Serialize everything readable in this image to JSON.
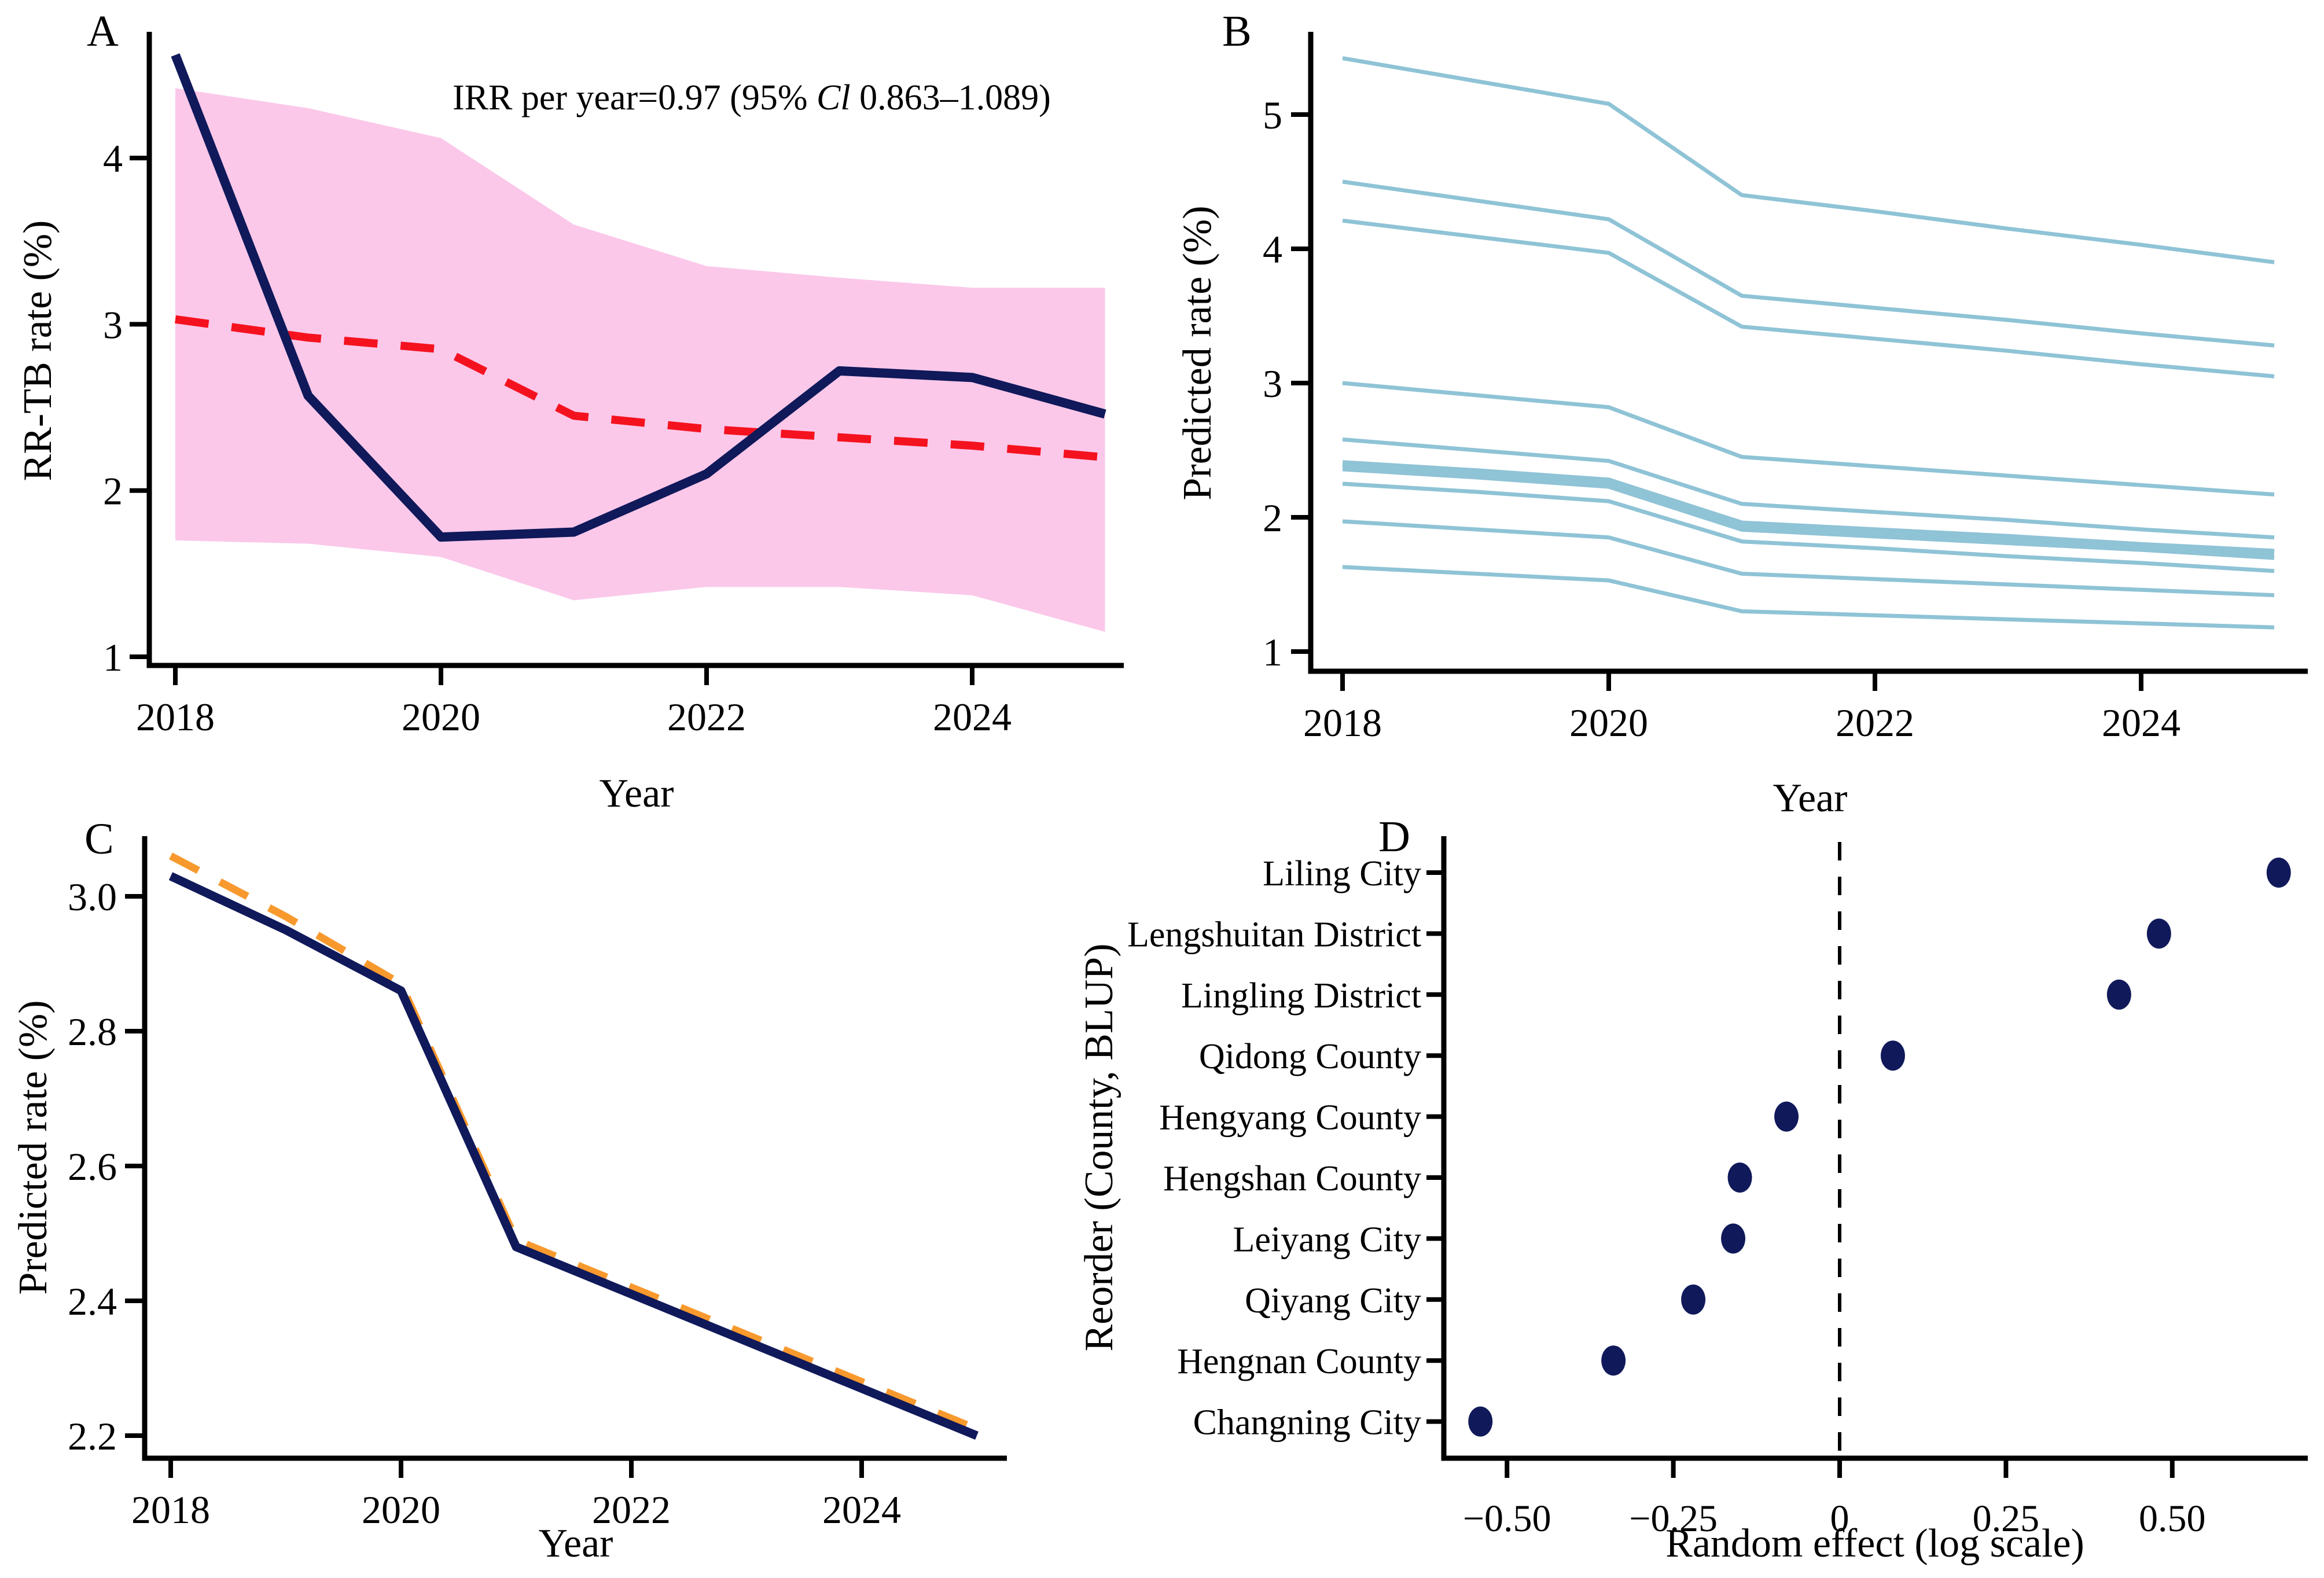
{
  "figure": {
    "background": "#ffffff",
    "text_color": "#000000"
  },
  "chart_data": [
    {
      "id": "A",
      "type": "line",
      "panel_label": "A",
      "xlabel": "Year",
      "ylabel": "RR-TB rate (%)",
      "x": [
        2018,
        2019,
        2020,
        2021,
        2022,
        2023,
        2024,
        2025
      ],
      "xtick_labels": [
        "2018",
        "2020",
        "2022",
        "2024"
      ],
      "xtick_values": [
        2018,
        2020,
        2022,
        2024
      ],
      "ytick_labels": [
        "1",
        "2",
        "3",
        "4"
      ],
      "ytick_values": [
        1,
        2,
        3,
        4
      ],
      "xlim": [
        2017.8,
        2025.2
      ],
      "ylim": [
        0.95,
        4.75
      ],
      "grid": false,
      "legend": "none",
      "annotation": {
        "prefix": "IRR per year=0.97 (95% ",
        "italic": "Cl",
        "suffix": " 0.863–1.089)"
      },
      "band": {
        "name": "95% confidence band",
        "color": "#FBC8EA",
        "upper": [
          4.42,
          4.3,
          4.12,
          3.6,
          3.35,
          3.28,
          3.22,
          3.22
        ],
        "lower": [
          1.7,
          1.68,
          1.6,
          1.34,
          1.42,
          1.42,
          1.37,
          1.15
        ]
      },
      "series": [
        {
          "name": "red-dashed-trend",
          "color": "#F5121F",
          "dash": "58 40",
          "width": 14,
          "values": [
            3.03,
            2.92,
            2.85,
            2.45,
            2.37,
            2.32,
            2.27,
            2.2
          ]
        },
        {
          "name": "navy-solid-observed",
          "color": "#10195A",
          "dash": null,
          "width": 16,
          "values": [
            4.62,
            2.57,
            1.72,
            1.75,
            2.1,
            2.72,
            2.68,
            2.46
          ]
        }
      ]
    },
    {
      "id": "B",
      "type": "line",
      "panel_label": "B",
      "xlabel": "Year",
      "ylabel": "Predicted rate (%)",
      "x": [
        2018,
        2019,
        2020,
        2021,
        2022,
        2023,
        2024,
        2025
      ],
      "xtick_labels": [
        "2018",
        "2020",
        "2022",
        "2024"
      ],
      "xtick_values": [
        2018,
        2020,
        2022,
        2024
      ],
      "ytick_labels": [
        "1",
        "2",
        "3",
        "4",
        "5"
      ],
      "ytick_values": [
        1,
        2,
        3,
        4,
        5
      ],
      "xlim": [
        2017.8,
        2025.3
      ],
      "ylim": [
        0.86,
        5.6
      ],
      "grid": false,
      "legend": "none",
      "series": [
        {
          "name": "county-trajectory-1",
          "color": "#8FC3D6",
          "dash": null,
          "width": 7,
          "values": [
            5.42,
            5.25,
            5.08,
            4.4,
            4.28,
            4.15,
            4.03,
            3.9
          ]
        },
        {
          "name": "county-trajectory-2",
          "color": "#8FC3D6",
          "dash": null,
          "width": 7,
          "values": [
            4.5,
            4.36,
            4.22,
            3.65,
            3.56,
            3.47,
            3.37,
            3.28
          ]
        },
        {
          "name": "county-trajectory-3",
          "color": "#8FC3D6",
          "dash": null,
          "width": 7,
          "values": [
            4.21,
            4.09,
            3.97,
            3.42,
            3.33,
            3.24,
            3.14,
            3.05
          ]
        },
        {
          "name": "county-trajectory-4",
          "color": "#8FC3D6",
          "dash": null,
          "width": 7,
          "values": [
            3.0,
            2.91,
            2.82,
            2.45,
            2.38,
            2.31,
            2.24,
            2.17
          ]
        },
        {
          "name": "county-trajectory-5",
          "color": "#8FC3D6",
          "dash": null,
          "width": 7,
          "values": [
            2.58,
            2.5,
            2.42,
            2.1,
            2.04,
            1.98,
            1.91,
            1.85
          ]
        },
        {
          "name": "county-trajectory-6",
          "color": "#8FC3D6",
          "dash": null,
          "width": 12,
          "values": [
            2.4,
            2.34,
            2.27,
            1.95,
            1.9,
            1.85,
            1.79,
            1.74
          ]
        },
        {
          "name": "county-trajectory-7",
          "color": "#8FC3D6",
          "dash": null,
          "width": 8,
          "values": [
            2.36,
            2.3,
            2.23,
            1.91,
            1.86,
            1.81,
            1.76,
            1.7
          ]
        },
        {
          "name": "county-trajectory-8",
          "color": "#8FC3D6",
          "dash": null,
          "width": 7,
          "values": [
            2.25,
            2.19,
            2.12,
            1.82,
            1.77,
            1.71,
            1.66,
            1.6
          ]
        },
        {
          "name": "county-trajectory-9",
          "color": "#8FC3D6",
          "dash": null,
          "width": 7,
          "values": [
            1.97,
            1.91,
            1.85,
            1.58,
            1.54,
            1.5,
            1.46,
            1.42
          ]
        },
        {
          "name": "county-trajectory-10",
          "color": "#8FC3D6",
          "dash": null,
          "width": 7,
          "values": [
            1.63,
            1.58,
            1.53,
            1.3,
            1.27,
            1.24,
            1.21,
            1.18
          ]
        }
      ]
    },
    {
      "id": "C",
      "type": "line",
      "panel_label": "C",
      "xlabel": "Year",
      "ylabel": "Predicted rate (%)",
      "x": [
        2018,
        2019,
        2020,
        2021,
        2022,
        2023,
        2024,
        2025
      ],
      "xtick_labels": [
        "2018",
        "2020",
        "2022",
        "2024"
      ],
      "xtick_values": [
        2018,
        2020,
        2022,
        2024
      ],
      "ytick_labels": [
        "2.2",
        "2.4",
        "2.6",
        "2.8",
        "3.0"
      ],
      "ytick_values": [
        2.2,
        2.4,
        2.6,
        2.8,
        3.0
      ],
      "xlim": [
        2017.8,
        2025.3
      ],
      "ylim": [
        2.17,
        3.06
      ],
      "grid": false,
      "legend": "none",
      "series": [
        {
          "name": "orange-dashed-fit",
          "color": "#F8992E",
          "dash": "54 42",
          "width": 13,
          "values": [
            3.06,
            2.97,
            2.87,
            2.49,
            2.42,
            2.35,
            2.28,
            2.21
          ]
        },
        {
          "name": "navy-solid-predicted",
          "color": "#10195A",
          "dash": null,
          "width": 15,
          "values": [
            3.03,
            2.95,
            2.86,
            2.48,
            2.41,
            2.34,
            2.27,
            2.2
          ]
        }
      ]
    },
    {
      "id": "D",
      "type": "scatter",
      "panel_label": "D",
      "xlabel": "Random effect (log scale)",
      "ylabel": "Reorder (County, BLUP)",
      "categories": [
        "Liling City",
        "Lengshuitan District",
        "Lingling District",
        "Qidong County",
        "Hengyang County",
        "Hengshan County",
        "Leiyang City",
        "Qiyang City",
        "Hengnan County",
        "Changning City"
      ],
      "values": [
        0.66,
        0.48,
        0.42,
        0.08,
        -0.08,
        -0.15,
        -0.16,
        -0.22,
        -0.34,
        -0.54
      ],
      "xtick_labels": [
        "−0.50",
        "−0.25",
        "0",
        "0.25",
        "0.50"
      ],
      "xtick_values": [
        -0.5,
        -0.25,
        0,
        0.25,
        0.5
      ],
      "xlim": [
        -0.6,
        0.71
      ],
      "refline": 0,
      "dot_color": "#10195A",
      "grid": false,
      "legend": "none"
    }
  ]
}
